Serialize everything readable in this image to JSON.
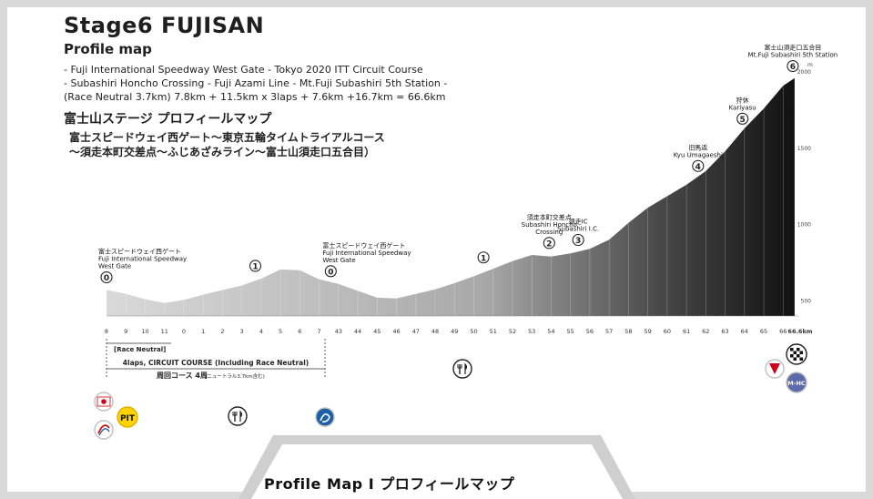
{
  "header": {
    "title": "Stage6 FUJISAN",
    "subtitle": "Profile map",
    "desc_lines": [
      "- Fuji International Speedway West Gate - Tokyo 2020 ITT Circuit Course",
      "- Subashiri Honcho Crossing - Fuji Azami Line  - Mt.Fuji Subashiri 5th Station -",
      "(Race Neutral 3.7km) 7.8km + 11.5km x 3laps + 7.6km +16.7km = 66.6km"
    ],
    "jp_title": "富士山ステージ プロフィールマップ",
    "jp_lines": [
      "富士スピードウェイ西ゲート〜東京五輪タイムトライアルコース",
      "〜須走本町交差点〜ふじあざみライン〜富士山須走口五合目）"
    ]
  },
  "chart_data": {
    "type": "area",
    "x_ticks": [
      "8",
      "9",
      "10",
      "11",
      "0",
      "1",
      "2",
      "3",
      "4",
      "5",
      "6",
      "7",
      "43",
      "44",
      "45",
      "46",
      "47",
      "48",
      "49",
      "50",
      "51",
      "52",
      "53",
      "54",
      "55",
      "56",
      "57",
      "58",
      "59",
      "60",
      "61",
      "62",
      "63",
      "64",
      "65",
      "66",
      "66.6km"
    ],
    "y_ticks": [
      "2000",
      "1500",
      "1000",
      "500"
    ],
    "y_unit": "m",
    "y_range": [
      400,
      2050
    ],
    "profile": [
      {
        "x": 0,
        "y": 570
      },
      {
        "x": 1,
        "y": 545
      },
      {
        "x": 2,
        "y": 510
      },
      {
        "x": 3,
        "y": 485
      },
      {
        "x": 4,
        "y": 505
      },
      {
        "x": 5,
        "y": 540
      },
      {
        "x": 6,
        "y": 570
      },
      {
        "x": 7,
        "y": 600
      },
      {
        "x": 8,
        "y": 645
      },
      {
        "x": 9,
        "y": 705
      },
      {
        "x": 10,
        "y": 700
      },
      {
        "x": 11,
        "y": 640
      },
      {
        "x": 12,
        "y": 610
      },
      {
        "x": 13,
        "y": 565
      },
      {
        "x": 14,
        "y": 520
      },
      {
        "x": 15,
        "y": 515
      },
      {
        "x": 16,
        "y": 545
      },
      {
        "x": 17,
        "y": 575
      },
      {
        "x": 18,
        "y": 615
      },
      {
        "x": 19,
        "y": 660
      },
      {
        "x": 20,
        "y": 710
      },
      {
        "x": 21,
        "y": 760
      },
      {
        "x": 22,
        "y": 800
      },
      {
        "x": 23,
        "y": 790
      },
      {
        "x": 24,
        "y": 810
      },
      {
        "x": 25,
        "y": 840
      },
      {
        "x": 26,
        "y": 900
      },
      {
        "x": 27,
        "y": 1010
      },
      {
        "x": 28,
        "y": 1110
      },
      {
        "x": 29,
        "y": 1185
      },
      {
        "x": 30,
        "y": 1260
      },
      {
        "x": 31,
        "y": 1350
      },
      {
        "x": 32,
        "y": 1480
      },
      {
        "x": 33,
        "y": 1630
      },
      {
        "x": 34,
        "y": 1760
      },
      {
        "x": 35,
        "y": 1910
      },
      {
        "x": 35.6,
        "y": 1960
      }
    ],
    "markers": [
      {
        "num": "0",
        "x": 0,
        "y": 570,
        "jp": "富士スピードウェイ西ゲート",
        "en": [
          "Fuji International Speedway",
          "West Gate"
        ]
      },
      {
        "num": "1",
        "x": 7.7,
        "y": 645,
        "jp": "",
        "en": []
      },
      {
        "num": "0",
        "x": 11.6,
        "y": 610,
        "jp": "富士スピードウェイ西ゲート",
        "en": [
          "Fuji International Speedway",
          "West Gate"
        ]
      },
      {
        "num": "1",
        "x": 19.5,
        "y": 700,
        "jp": "",
        "en": []
      },
      {
        "num": "2",
        "x": 22.9,
        "y": 795,
        "jp": "須走本町交差点",
        "en": [
          "Subashiri Honcho",
          "Crossing"
        ]
      },
      {
        "num": "3",
        "x": 24.4,
        "y": 815,
        "jp": "須走IC",
        "en": [
          "Subashiri I.C."
        ]
      },
      {
        "num": "4",
        "x": 30.6,
        "y": 1300,
        "jp": "旧馬返",
        "en": [
          "Kyu Umagaeshi"
        ]
      },
      {
        "num": "5",
        "x": 32.9,
        "y": 1610,
        "jp": "狩休",
        "en": [
          "Kariyasu"
        ]
      },
      {
        "num": "6",
        "x": 35.5,
        "y": 1955,
        "jp": "富士山須走口五合目",
        "en": [
          "Mt.Fuji Subashiri 5th Station"
        ]
      }
    ],
    "annotations": {
      "neutral": "[Race Neutral]",
      "laps": "4laps, CIRCUIT COURSE (Including Race Neutral)",
      "laps_jp_main": "周回コース 4周",
      "laps_jp_small": "(ニュートラル3.7km含む)"
    }
  },
  "icons": {
    "start_flag": "japan-flag-icon",
    "pit": "PIT",
    "sprint": "sprint-icon",
    "feed": "fork-knife-icon",
    "kom_finish_badge": "M-HC"
  },
  "footer": {
    "label": "Profile Map I プロフィールマップ"
  },
  "colors": {
    "pit": "#ffd400",
    "flag_red": "#d0021b",
    "kom_badge": "#5b6aa8",
    "sprint": "#1f5fa8"
  }
}
